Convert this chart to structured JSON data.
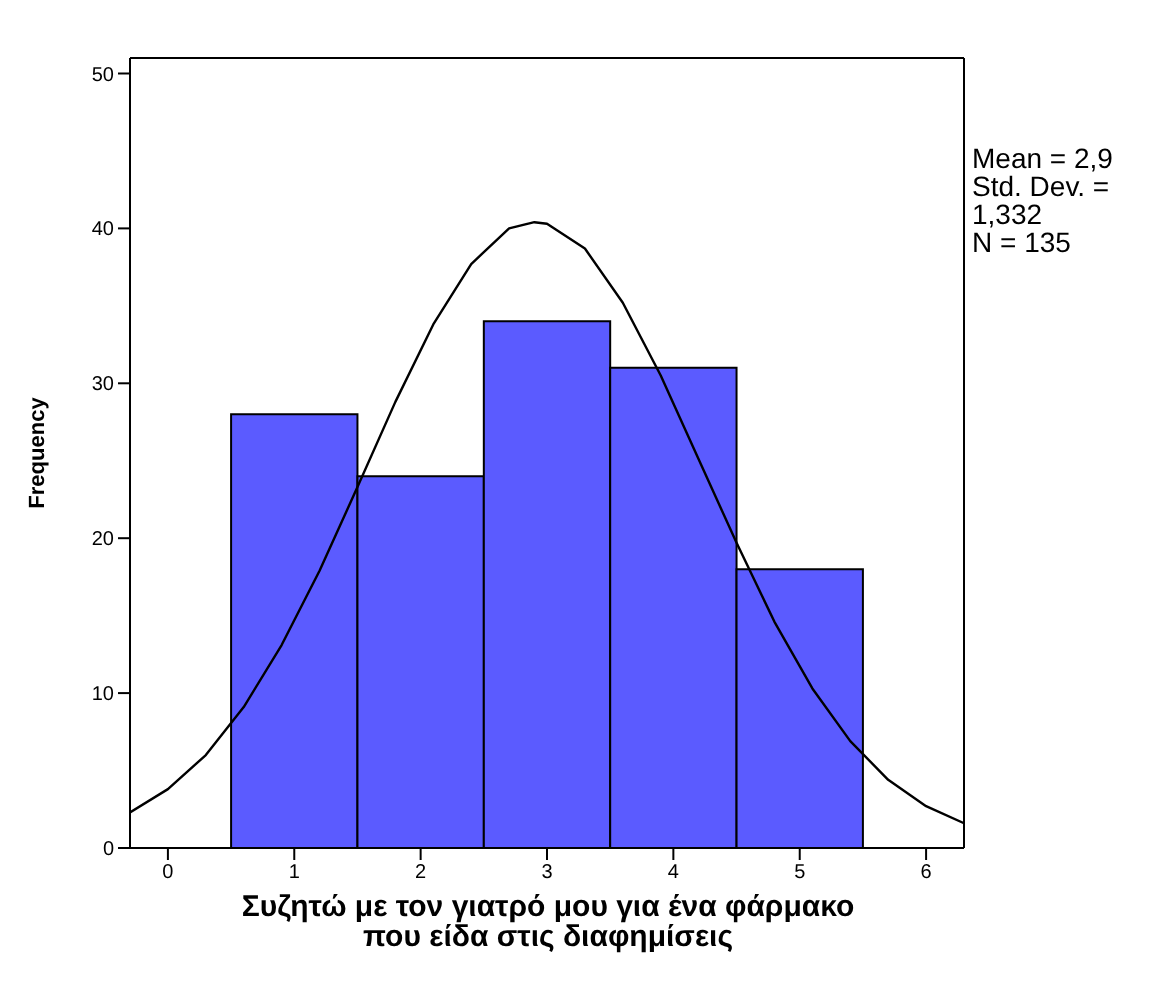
{
  "chart_data": {
    "type": "histogram",
    "xlabel": "Συζητώ με τον γιατρό μου για ένα φάρμακο που είδα στις διαφημίσεις",
    "ylabel": "Frequency",
    "bins": [
      0.5,
      1.5,
      2.5,
      3.5,
      4.5,
      5.5
    ],
    "series": [
      {
        "color": "#5b5bff",
        "values": [
          28,
          24,
          34,
          31,
          18
        ]
      },
      {
        "type": "line",
        "color": "#000000",
        "x": [
          -0.3,
          0,
          0.3,
          0.6,
          0.9,
          1.2,
          1.5,
          1.8,
          2.1,
          2.4,
          2.7,
          2.9,
          3.0,
          3.3,
          3.6,
          3.9,
          4.2,
          4.5,
          4.8,
          5.1,
          5.4,
          5.7,
          6.0,
          6.3
        ],
        "values": [
          2.3,
          3.8,
          6.0,
          9.1,
          13.1,
          17.9,
          23.3,
          28.8,
          33.8,
          37.7,
          40.0,
          40.4,
          40.3,
          38.7,
          35.2,
          30.5,
          25.1,
          19.7,
          14.6,
          10.3,
          6.9,
          4.4,
          2.7,
          1.6
        ]
      }
    ],
    "annotations": [
      "Mean = 2,9",
      "Std. Dev. = 1,332",
      "N = 135"
    ],
    "xlim": [
      -0.3,
      6.3
    ],
    "xticks": [
      0,
      1,
      2,
      3,
      4,
      5,
      6
    ],
    "ylim": [
      0,
      51
    ],
    "yticks": [
      0,
      10,
      20,
      30,
      40,
      50
    ],
    "grid": false,
    "legend": false,
    "marker": "none",
    "line_style": "solid"
  }
}
